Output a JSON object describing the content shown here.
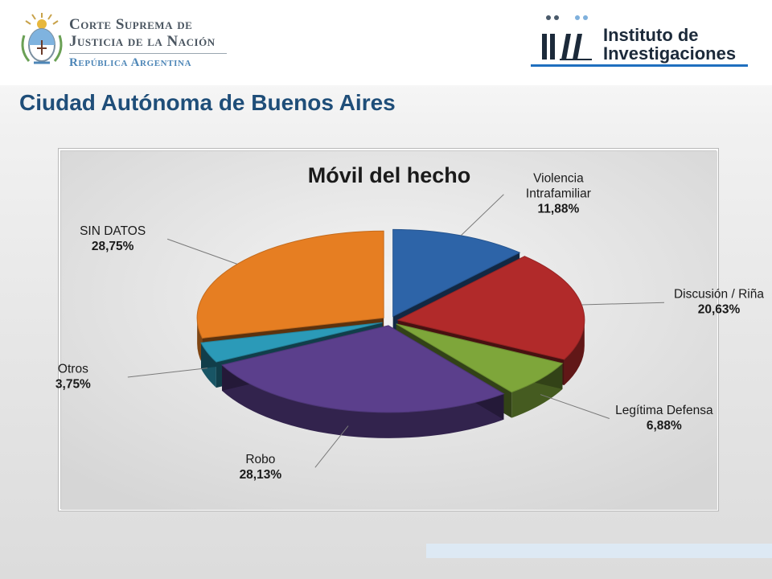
{
  "header": {
    "csj": {
      "line1": "Corte Suprema de",
      "line2": "Justicia de la Nación",
      "line3": "República Argentina"
    },
    "ii": {
      "line1": "Instituto de",
      "line2": "Investigaciones",
      "mark": "1ii",
      "accent_color": "#1f6fbf"
    }
  },
  "page": {
    "title": "Ciudad Autónoma de Buenos Aires"
  },
  "chart_data": {
    "type": "pie",
    "title": "Móvil del hecho",
    "style": "3d-exploded",
    "legend": "none",
    "slices": [
      {
        "label_lines": [
          "Violencia",
          "Intrafamiliar"
        ],
        "value": 11.88,
        "display": "11,88%",
        "color": "#2d64a8"
      },
      {
        "label_lines": [
          "Discusión / Riña"
        ],
        "value": 20.63,
        "display": "20,63%",
        "color": "#b12a2a"
      },
      {
        "label_lines": [
          "Legítima Defensa"
        ],
        "value": 6.88,
        "display": "6,88%",
        "color": "#7ea63a"
      },
      {
        "label_lines": [
          "Robo"
        ],
        "value": 28.13,
        "display": "28,13%",
        "color": "#5b3f8c"
      },
      {
        "label_lines": [
          "Otros"
        ],
        "value": 3.75,
        "display": "3,75%",
        "color": "#2b9ab8"
      },
      {
        "label_lines": [
          "SIN DATOS"
        ],
        "value": 28.75,
        "display": "28,75%",
        "color": "#e67e22"
      }
    ]
  }
}
